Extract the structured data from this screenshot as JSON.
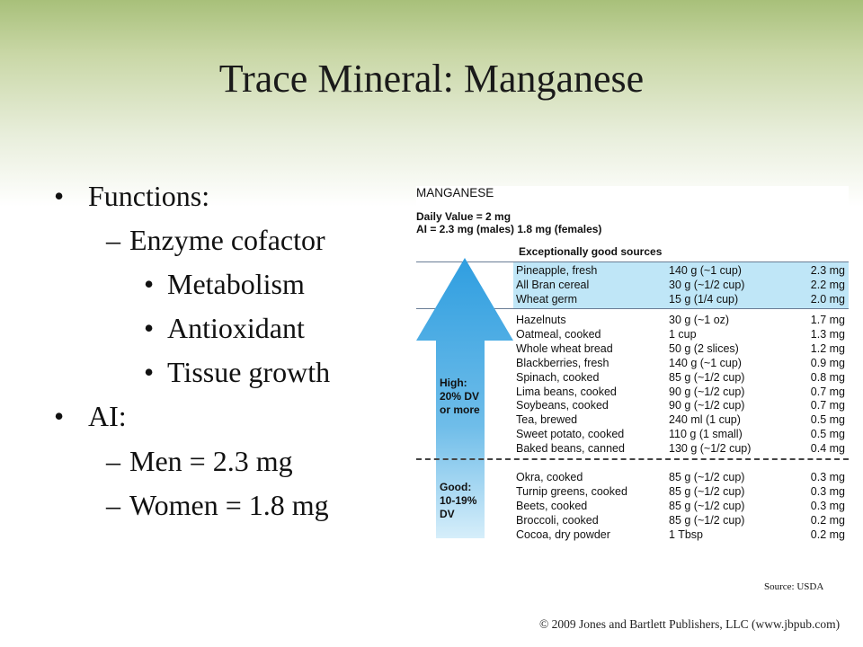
{
  "title": "Trace Mineral: Manganese",
  "bullets": [
    {
      "marker": "•",
      "text": "Functions:"
    },
    {
      "marker": "–",
      "text": "Enzyme cofactor"
    },
    {
      "marker": "•",
      "text": "Metabolism"
    },
    {
      "marker": "•",
      "text": "Antioxidant"
    },
    {
      "marker": "•",
      "text": "Tissue growth"
    },
    {
      "marker": "•",
      "text": "AI:"
    },
    {
      "marker": "–",
      "text": "Men = 2.3 mg"
    },
    {
      "marker": "–",
      "text": "Women = 1.8 mg"
    }
  ],
  "card": {
    "heading": "MANGANESE",
    "daily_value": "Daily Value = 2 mg",
    "ai": "AI = 2.3 mg (males)  1.8 mg (females)",
    "exceptional_label": "Exceptionally good sources",
    "high_label": "High:\n20% DV\nor more",
    "good_label": "Good:\n10-19%\nDV",
    "exceptional_rows": [
      {
        "food": "Pineapple, fresh",
        "serving": "140 g (~1 cup)",
        "amount": "2.3 mg"
      },
      {
        "food": "All Bran cereal",
        "serving": "30 g (~1/2 cup)",
        "amount": "2.2 mg"
      },
      {
        "food": "Wheat germ",
        "serving": "15 g (1/4 cup)",
        "amount": "2.0 mg"
      }
    ],
    "high_rows": [
      {
        "food": "Hazelnuts",
        "serving": "30 g (~1 oz)",
        "amount": "1.7 mg"
      },
      {
        "food": "Oatmeal, cooked",
        "serving": "1 cup",
        "amount": "1.3 mg"
      },
      {
        "food": "Whole wheat bread",
        "serving": "50 g (2 slices)",
        "amount": "1.2 mg"
      },
      {
        "food": "Blackberries, fresh",
        "serving": "140 g (~1 cup)",
        "amount": "0.9 mg"
      },
      {
        "food": "Spinach, cooked",
        "serving": "85 g (~1/2 cup)",
        "amount": "0.8 mg"
      },
      {
        "food": "Lima beans, cooked",
        "serving": "90 g (~1/2 cup)",
        "amount": "0.7 mg"
      },
      {
        "food": "Soybeans, cooked",
        "serving": "90 g (~1/2 cup)",
        "amount": "0.7 mg"
      },
      {
        "food": "Tea, brewed",
        "serving": "240 ml (1 cup)",
        "amount": "0.5 mg"
      },
      {
        "food": "Sweet potato, cooked",
        "serving": "110 g (1 small)",
        "amount": "0.5 mg"
      },
      {
        "food": "Baked beans, canned",
        "serving": "130 g (~1/2 cup)",
        "amount": "0.4 mg"
      }
    ],
    "good_rows": [
      {
        "food": "Okra, cooked",
        "serving": "85 g (~1/2 cup)",
        "amount": "0.3 mg"
      },
      {
        "food": "Turnip greens, cooked",
        "serving": "85 g (~1/2 cup)",
        "amount": "0.3 mg"
      },
      {
        "food": "Beets, cooked",
        "serving": "85 g (~1/2 cup)",
        "amount": "0.3 mg"
      },
      {
        "food": "Broccoli, cooked",
        "serving": "85 g (~1/2 cup)",
        "amount": "0.2 mg"
      },
      {
        "food": "Cocoa, dry powder",
        "serving": "1 Tbsp",
        "amount": "0.2 mg"
      }
    ]
  },
  "source": "Source: USDA",
  "copyright": "© 2009 Jones and Bartlett Publishers, LLC (www.jbpub.com)",
  "colors": {
    "arrow": "#4aa8e0",
    "exceptional_band": "#bfe6f7",
    "header_green": "#a8c07a"
  }
}
